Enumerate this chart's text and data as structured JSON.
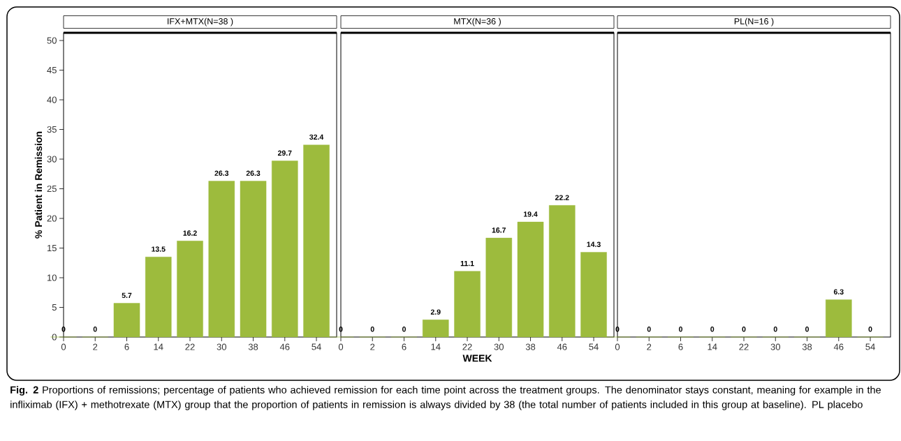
{
  "chart_data": [
    {
      "type": "bar",
      "title": "IFX+MTX(N=38 )",
      "ylabel": "% Patient in Remission",
      "categories": [
        "0",
        "2",
        "6",
        "14",
        "22",
        "30",
        "38",
        "46",
        "54"
      ],
      "values": [
        0,
        0,
        5.7,
        13.5,
        16.2,
        26.3,
        26.3,
        29.7,
        32.4
      ],
      "color": "#9dbb3d",
      "ylim": [
        0,
        51.3
      ],
      "yticks": [
        0,
        5,
        10,
        15,
        20,
        25,
        30,
        35,
        40,
        45,
        50
      ],
      "data_labels": true,
      "annotations": [
        "**Fig. 2** Proportions of remissions; percentage of patients who achieved remission for each time point across the treatment groups. The denominator stays constant, meaning for example in the infliximab (IFX) + methotrexate (MTX) group that the proportion of patients in remission is always divided by 38 (the total number of patients included in this group at baseline). PL placebo"
      ]
    },
    {
      "type": "bar",
      "title": "MTX(N=36 )",
      "xlabel": "WEEK",
      "categories": [
        "0",
        "2",
        "6",
        "14",
        "22",
        "30",
        "38",
        "46",
        "54"
      ],
      "values": [
        0,
        0,
        0,
        2.9,
        11.1,
        16.7,
        19.4,
        22.2,
        14.3
      ],
      "color": "#9dbb3d",
      "ylim": [
        0,
        51.3
      ],
      "yticks": [
        0,
        5,
        10,
        15,
        20,
        25,
        30,
        35,
        40,
        45,
        50
      ],
      "data_labels": true,
      "tick_labels": "x"
    },
    {
      "type": "bar",
      "title": "PL(N=16 )",
      "categories": [
        "0",
        "2",
        "6",
        "14",
        "22",
        "30",
        "38",
        "46",
        "54"
      ],
      "values": [
        0,
        0,
        0,
        0,
        0,
        0,
        0,
        6.3,
        0
      ],
      "color": "#9dbb3d",
      "ylim": [
        0,
        51.3
      ],
      "yticks": [
        0,
        5,
        10,
        15,
        20,
        25,
        30,
        35,
        40,
        45,
        50
      ],
      "data_labels": true,
      "tick_labels": "x"
    }
  ]
}
